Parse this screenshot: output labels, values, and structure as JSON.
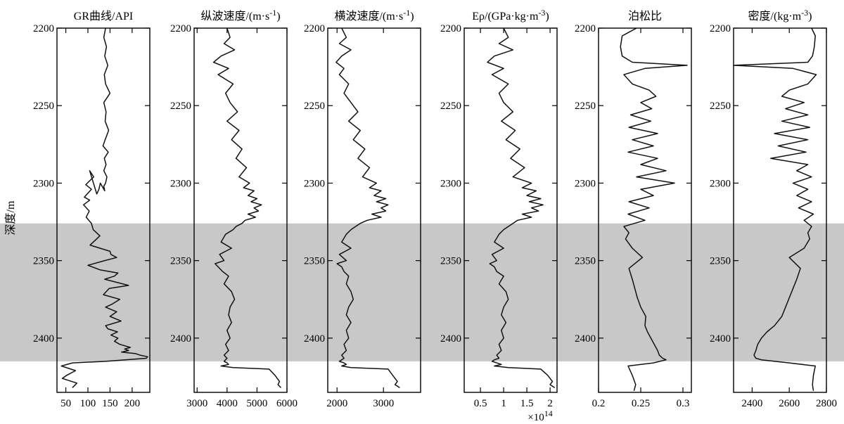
{
  "chart_data": {
    "type": "line",
    "ylabel": "深度/m",
    "ylim": [
      2200,
      2435
    ],
    "y_ticks": [
      2200,
      2250,
      2300,
      2350,
      2400
    ],
    "y_tick_labels": [
      "2200",
      "2250",
      "2300",
      "2350",
      "2400"
    ],
    "highlight_band": {
      "from": 2326,
      "to": 2415,
      "color": "#c8c8c8"
    },
    "tracks": [
      {
        "title": "GR曲线/API",
        "xlim": [
          30,
          240
        ],
        "x_ticks": [
          50,
          100,
          150,
          200
        ],
        "x_tick_labels": [
          "50",
          "100",
          "150",
          "200"
        ],
        "series": [
          {
            "x": [
              140,
              136,
              142,
              138,
              145,
              137,
              140,
              150,
              136,
              141,
              139,
              147,
              139,
              134,
              146,
              137,
              141,
              136,
              143,
              140,
              136,
              138,
              128,
              125,
              120,
              104,
              113,
              95,
              108,
              92,
              104,
              90,
              103,
              96,
              108,
              112,
              127,
              105,
              150,
              152,
              165,
              138,
              100,
              128,
              168,
              160,
              138,
              192,
              148,
              135,
              172,
              155,
              140,
              165,
              150,
              175,
              140,
              145,
              167,
              152,
              168,
              160,
              172,
              196,
              183,
              192,
              176,
              208,
              218,
              235,
              232,
              140,
              65,
              40,
              72,
              52,
              42,
              75,
              65
            ],
            "y": [
              2200,
              2206,
              2212,
              2218,
              2224,
              2230,
              2236,
              2242,
              2248,
              2254,
              2260,
              2266,
              2272,
              2276,
              2280,
              2284,
              2288,
              2292,
              2296,
              2300,
              2302,
              2305,
              2300,
              2304,
              2307,
              2292,
              2296,
              2301,
              2304,
              2309,
              2311,
              2314,
              2318,
              2322,
              2326,
              2330,
              2334,
              2340,
              2344,
              2346,
              2348,
              2350,
              2353,
              2356,
              2358,
              2360,
              2362,
              2366,
              2368,
              2372,
              2375,
              2378,
              2380,
              2383,
              2386,
              2389,
              2392,
              2394,
              2396,
              2398,
              2400,
              2402,
              2404,
              2406,
              2407,
              2408,
              2409,
              2410,
              2411,
              2412,
              2413,
              2415,
              2416,
              2418,
              2421,
              2424,
              2426,
              2429,
              2432
            ]
          }
        ]
      },
      {
        "title": "纵波速度/(m·s-1)",
        "title_main": "纵波速度/(m·s",
        "title_sup": "-1",
        "title_tail": ")",
        "xlim": [
          2900,
          6000
        ],
        "x_ticks": [
          3000,
          4000,
          5000,
          6000
        ],
        "x_tick_labels": [
          "3000",
          "4000",
          "5000",
          "6000"
        ],
        "series": [
          {
            "x": [
              4000,
              4100,
              3900,
              4250,
              3800,
              3550,
              4050,
              3700,
              4200,
              3950,
              4100,
              4350,
              4000,
              4400,
              4150,
              4500,
              4300,
              4650,
              4400,
              4750,
              4550,
              4900,
              4700,
              5000,
              4800,
              5150,
              4900,
              5050,
              4700,
              4950,
              4600,
              4500,
              4300,
              4200,
              3950,
              3800,
              4150,
              3750,
              3900,
              3600,
              3700,
              3850,
              4050,
              3900,
              4150,
              4250,
              4100,
              4050,
              4150,
              4000,
              4100,
              3950,
              4050,
              3900,
              4000,
              3950,
              3900,
              4000,
              4050,
              3800,
              4200,
              5400,
              5600,
              5750,
              5700,
              5800
            ],
            "y": [
              2200,
              2206,
              2210,
              2214,
              2218,
              2222,
              2226,
              2230,
              2236,
              2242,
              2248,
              2254,
              2260,
              2266,
              2272,
              2278,
              2284,
              2290,
              2296,
              2300,
              2303,
              2305,
              2308,
              2310,
              2312,
              2314,
              2316,
              2318,
              2320,
              2322,
              2324,
              2326,
              2328,
              2330,
              2333,
              2338,
              2342,
              2346,
              2350,
              2352,
              2354,
              2357,
              2360,
              2365,
              2370,
              2375,
              2380,
              2385,
              2390,
              2395,
              2400,
              2404,
              2408,
              2411,
              2413,
              2414,
              2415,
              2416,
              2417,
              2418,
              2419,
              2420,
              2424,
              2428,
              2430,
              2432
            ]
          }
        ]
      },
      {
        "title": "横波速度/(m·s-1)",
        "title_main": "横波速度/(m·s",
        "title_sup": "-1",
        "title_tail": ")",
        "xlim": [
          1800,
          3800
        ],
        "x_ticks": [
          2000,
          3000
        ],
        "x_tick_labels": [
          "2000",
          "3000"
        ],
        "series": [
          {
            "x": [
              2100,
              2200,
              2050,
              2300,
              2100,
              1980,
              2150,
              2050,
              2250,
              2150,
              2300,
              2450,
              2250,
              2500,
              2350,
              2600,
              2450,
              2700,
              2550,
              2850,
              2700,
              2950,
              2800,
              3050,
              2850,
              3100,
              2950,
              3050,
              2750,
              2950,
              2650,
              2500,
              2400,
              2300,
              2200,
              2100,
              2300,
              2050,
              2200,
              2000,
              2100,
              2150,
              2250,
              2200,
              2300,
              2350,
              2250,
              2200,
              2300,
              2200,
              2250,
              2150,
              2200,
              2100,
              2150,
              2100,
              2050,
              2150,
              2200,
              2100,
              2300,
              3100,
              3200,
              3300,
              3250,
              3350
            ],
            "y": [
              2200,
              2206,
              2210,
              2214,
              2218,
              2222,
              2226,
              2230,
              2236,
              2242,
              2248,
              2254,
              2260,
              2266,
              2272,
              2278,
              2284,
              2290,
              2296,
              2300,
              2303,
              2305,
              2308,
              2310,
              2312,
              2314,
              2316,
              2318,
              2320,
              2322,
              2324,
              2326,
              2328,
              2330,
              2333,
              2338,
              2342,
              2346,
              2350,
              2352,
              2354,
              2357,
              2360,
              2365,
              2370,
              2375,
              2380,
              2385,
              2390,
              2395,
              2400,
              2404,
              2408,
              2411,
              2413,
              2414,
              2415,
              2416,
              2417,
              2418,
              2419,
              2420,
              2424,
              2428,
              2430,
              2432
            ]
          }
        ]
      },
      {
        "title": "Eρ/(GPa·kg·m-3)",
        "title_main": "Eρ/(GPa·kg·m",
        "title_sup": "-3",
        "title_tail": ")",
        "xlim": [
          0.15,
          2.15
        ],
        "x_ticks": [
          0.5,
          1,
          1.5,
          2
        ],
        "x_tick_labels": [
          "0.5",
          "1",
          "1.5",
          "2"
        ],
        "x_multiplier": "×10",
        "x_multiplier_exp": "14",
        "series": [
          {
            "x": [
              1.0,
              1.1,
              0.9,
              1.2,
              0.8,
              0.65,
              1.0,
              0.75,
              1.1,
              0.9,
              1.0,
              1.2,
              0.95,
              1.25,
              1.05,
              1.35,
              1.15,
              1.45,
              1.2,
              1.6,
              1.4,
              1.7,
              1.5,
              1.8,
              1.55,
              1.85,
              1.6,
              1.75,
              1.4,
              1.6,
              1.3,
              1.2,
              1.1,
              1.0,
              0.9,
              0.8,
              1.0,
              0.75,
              0.85,
              0.7,
              0.8,
              0.85,
              1.0,
              0.9,
              1.05,
              1.1,
              1.0,
              0.95,
              1.05,
              0.95,
              1.0,
              0.9,
              0.95,
              0.85,
              0.9,
              0.8,
              0.75,
              0.85,
              0.95,
              0.8,
              1.1,
              1.8,
              1.95,
              2.05,
              2.0,
              2.1
            ],
            "y": [
              2200,
              2206,
              2210,
              2214,
              2218,
              2222,
              2226,
              2230,
              2236,
              2242,
              2248,
              2254,
              2260,
              2266,
              2272,
              2278,
              2284,
              2290,
              2296,
              2300,
              2303,
              2305,
              2308,
              2310,
              2312,
              2314,
              2316,
              2318,
              2320,
              2322,
              2324,
              2326,
              2328,
              2330,
              2333,
              2338,
              2342,
              2346,
              2350,
              2352,
              2354,
              2357,
              2360,
              2365,
              2370,
              2375,
              2380,
              2385,
              2390,
              2395,
              2400,
              2404,
              2408,
              2411,
              2413,
              2414,
              2415,
              2416,
              2417,
              2418,
              2419,
              2420,
              2424,
              2428,
              2430,
              2432
            ]
          }
        ]
      },
      {
        "title": "泊松比",
        "xlim": [
          0.2,
          0.31
        ],
        "x_ticks": [
          0.2,
          0.25,
          0.3
        ],
        "x_tick_labels": [
          "0.2",
          "0.25",
          "0.3"
        ],
        "series": [
          {
            "x": [
              0.245,
              0.228,
              0.226,
              0.228,
              0.24,
              0.305,
              0.255,
              0.23,
              0.24,
              0.26,
              0.268,
              0.25,
              0.263,
              0.238,
              0.262,
              0.236,
              0.27,
              0.24,
              0.265,
              0.235,
              0.27,
              0.25,
              0.28,
              0.245,
              0.29,
              0.25,
              0.265,
              0.236,
              0.26,
              0.235,
              0.255,
              0.23,
              0.236,
              0.232,
              0.24,
              0.252,
              0.236,
              0.24,
              0.243,
              0.246,
              0.25,
              0.256,
              0.255,
              0.258,
              0.262,
              0.266,
              0.27,
              0.272,
              0.276,
              0.28,
              0.265,
              0.235,
              0.24,
              0.244,
              0.242
            ],
            "y": [
              2200,
              2205,
              2212,
              2218,
              2222,
              2224,
              2226,
              2230,
              2236,
              2240,
              2244,
              2248,
              2252,
              2256,
              2260,
              2264,
              2268,
              2272,
              2276,
              2280,
              2284,
              2288,
              2292,
              2296,
              2300,
              2304,
              2308,
              2312,
              2316,
              2320,
              2324,
              2328,
              2332,
              2336,
              2342,
              2348,
              2355,
              2362,
              2368,
              2374,
              2380,
              2386,
              2392,
              2396,
              2400,
              2404,
              2408,
              2411,
              2413,
              2414,
              2416,
              2418,
              2424,
              2430,
              2434
            ]
          }
        ]
      },
      {
        "title": "密度/(kg·m-3)",
        "title_main": "密度/(kg·m",
        "title_sup": "-3",
        "title_tail": ")",
        "xlim": [
          2300,
          2800
        ],
        "x_ticks": [
          2400,
          2600,
          2800
        ],
        "x_tick_labels": [
          "2400",
          "2600",
          "2800"
        ],
        "series": [
          {
            "x": [
              2720,
              2740,
              2735,
              2725,
              2700,
              2300,
              2620,
              2745,
              2700,
              2600,
              2560,
              2680,
              2580,
              2700,
              2560,
              2710,
              2520,
              2700,
              2540,
              2690,
              2500,
              2700,
              2640,
              2720,
              2620,
              2700,
              2640,
              2720,
              2650,
              2730,
              2680,
              2720,
              2700,
              2710,
              2680,
              2600,
              2660,
              2640,
              2620,
              2600,
              2580,
              2560,
              2520,
              2480,
              2450,
              2430,
              2420,
              2410,
              2420,
              2450,
              2600,
              2740,
              2730,
              2725,
              2730
            ],
            "y": [
              2200,
              2205,
              2212,
              2218,
              2222,
              2224,
              2226,
              2230,
              2236,
              2240,
              2244,
              2248,
              2252,
              2256,
              2260,
              2264,
              2268,
              2272,
              2276,
              2280,
              2284,
              2288,
              2292,
              2296,
              2300,
              2304,
              2308,
              2312,
              2316,
              2320,
              2324,
              2328,
              2332,
              2336,
              2342,
              2348,
              2355,
              2362,
              2368,
              2374,
              2380,
              2386,
              2392,
              2396,
              2400,
              2404,
              2408,
              2411,
              2413,
              2414,
              2416,
              2418,
              2424,
              2430,
              2434
            ]
          }
        ]
      }
    ]
  }
}
